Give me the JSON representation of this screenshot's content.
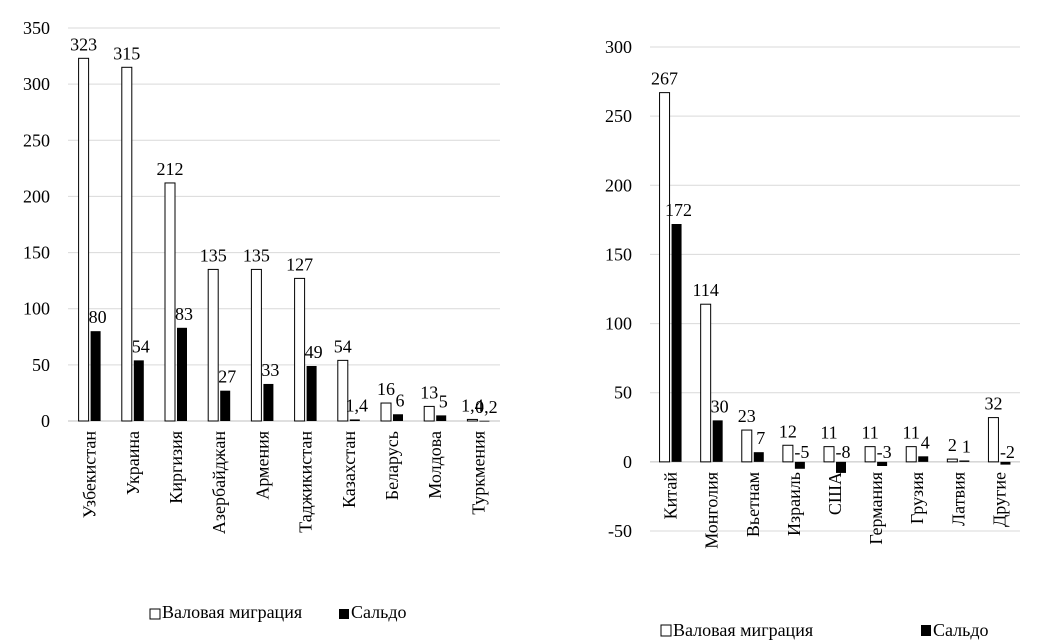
{
  "chart_data": [
    {
      "type": "bar",
      "categories": [
        "Узбекистан",
        "Украина",
        "Киргизия",
        "Азербайджан",
        "Армения",
        "Таджикистан",
        "Казахстан",
        "Беларусь",
        "Молдова",
        "Туркмения"
      ],
      "series": [
        {
          "name": "Валовая миграция",
          "values": [
            323,
            315,
            212,
            135,
            135,
            127,
            54,
            16,
            13,
            1.4
          ],
          "labels": [
            "323",
            "315",
            "212",
            "135",
            "135",
            "127",
            "54",
            "16",
            "13",
            "1,4"
          ],
          "fill": "#ffffff",
          "stroke": "#000000"
        },
        {
          "name": "Сальдо",
          "values": [
            80,
            54,
            83,
            27,
            33,
            49,
            1.4,
            6,
            5,
            0.2
          ],
          "labels": [
            "80",
            "54",
            "83",
            "27",
            "33",
            "49",
            "1,4",
            "6",
            "5",
            "0,2"
          ],
          "fill": "#000000",
          "stroke": "#000000"
        }
      ],
      "ylim": [
        0,
        350
      ],
      "yticks": [
        0,
        50,
        100,
        150,
        200,
        250,
        300,
        350
      ],
      "grid": true,
      "legend": "bottom"
    },
    {
      "type": "bar",
      "categories": [
        "Китай",
        "Монголия",
        "Вьетнам",
        "Израиль",
        "США",
        "Германия",
        "Грузия",
        "Латвия",
        "Другие"
      ],
      "series": [
        {
          "name": "Валовая миграция",
          "values": [
            267,
            114,
            23,
            12,
            11,
            11,
            11,
            2,
            32
          ],
          "labels": [
            "267",
            "114",
            "23",
            "12",
            "11",
            "11",
            "11",
            "2",
            "32"
          ],
          "fill": "#ffffff",
          "stroke": "#000000"
        },
        {
          "name": "Сальдо",
          "values": [
            172,
            30,
            7,
            -5,
            -8,
            -3,
            4,
            1,
            -2
          ],
          "labels": [
            "172",
            "30",
            "7",
            "-5",
            "-8",
            "-3",
            "4",
            "1",
            "-2"
          ],
          "fill": "#000000",
          "stroke": "#000000"
        }
      ],
      "ylim": [
        -50,
        300
      ],
      "yticks": [
        -50,
        0,
        50,
        100,
        150,
        200,
        250,
        300
      ],
      "grid": true,
      "legend": "bottom"
    }
  ],
  "legend_labels": {
    "gross": "Валовая миграция",
    "net": "Сальдо"
  },
  "colors": {
    "grid": "#d9d9d9",
    "axis": "#bfbfbf"
  }
}
